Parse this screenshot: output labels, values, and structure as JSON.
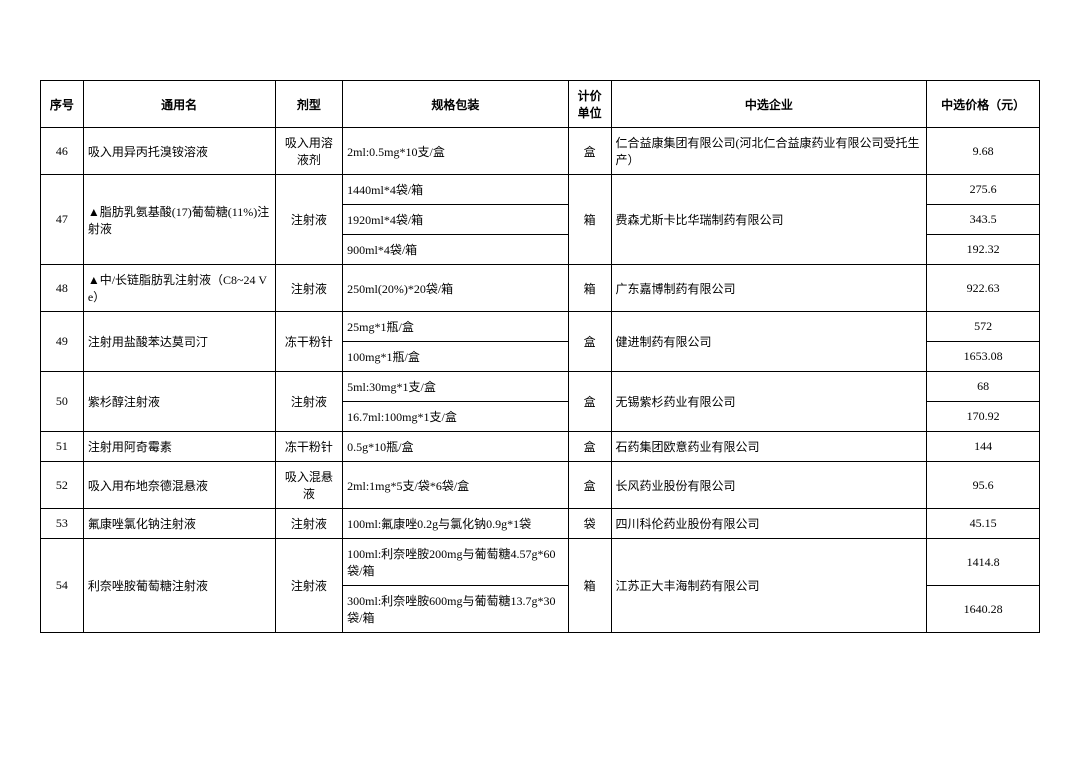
{
  "table": {
    "headers": {
      "seq": "序号",
      "name": "通用名",
      "form": "剂型",
      "spec": "规格包装",
      "unit": "计价单位",
      "company": "中选企业",
      "price": "中选价格（元）"
    },
    "rows": {
      "r46_seq": "46",
      "r46_name": "吸入用异丙托溴铵溶液",
      "r46_form": "吸入用溶液剂",
      "r46_spec": "2ml:0.5mg*10支/盒",
      "r46_unit": "盒",
      "r46_company": "仁合益康集团有限公司(河北仁合益康药业有限公司受托生产）",
      "r46_price": "9.68",
      "r47_seq": "47",
      "r47_name": "▲脂肪乳氨基酸(17)葡萄糖(11%)注射液",
      "r47_form": "注射液",
      "r47_spec1": "1440ml*4袋/箱",
      "r47_spec2": "1920ml*4袋/箱",
      "r47_spec3": "900ml*4袋/箱",
      "r47_unit": "箱",
      "r47_company": "费森尤斯卡比华瑞制药有限公司",
      "r47_price1": "275.6",
      "r47_price2": "343.5",
      "r47_price3": "192.32",
      "r48_seq": "48",
      "r48_name": "▲中/长链脂肪乳注射液（C8~24 Ve）",
      "r48_form": "注射液",
      "r48_spec": "250ml(20%)*20袋/箱",
      "r48_unit": "箱",
      "r48_company": "广东嘉博制药有限公司",
      "r48_price": "922.63",
      "r49_seq": "49",
      "r49_name": "注射用盐酸苯达莫司汀",
      "r49_form": "冻干粉针",
      "r49_spec1": "25mg*1瓶/盒",
      "r49_spec2": "100mg*1瓶/盒",
      "r49_unit": "盒",
      "r49_company": "健进制药有限公司",
      "r49_price1": "572",
      "r49_price2": "1653.08",
      "r50_seq": "50",
      "r50_name": "紫杉醇注射液",
      "r50_form": "注射液",
      "r50_spec1": "5ml:30mg*1支/盒",
      "r50_spec2": "16.7ml:100mg*1支/盒",
      "r50_unit": "盒",
      "r50_company": "无锡紫杉药业有限公司",
      "r50_price1": "68",
      "r50_price2": "170.92",
      "r51_seq": "51",
      "r51_name": "注射用阿奇霉素",
      "r51_form": "冻干粉针",
      "r51_spec": "0.5g*10瓶/盒",
      "r51_unit": "盒",
      "r51_company": "石药集团欧意药业有限公司",
      "r51_price": "144",
      "r52_seq": "52",
      "r52_name": "吸入用布地奈德混悬液",
      "r52_form": "吸入混悬液",
      "r52_spec": "2ml:1mg*5支/袋*6袋/盒",
      "r52_unit": "盒",
      "r52_company": "长风药业股份有限公司",
      "r52_price": "95.6",
      "r53_seq": "53",
      "r53_name": "氟康唑氯化钠注射液",
      "r53_form": "注射液",
      "r53_spec": "100ml:氟康唑0.2g与氯化钠0.9g*1袋",
      "r53_unit": "袋",
      "r53_company": "四川科伦药业股份有限公司",
      "r53_price": "45.15",
      "r54_seq": "54",
      "r54_name": "利奈唑胺葡萄糖注射液",
      "r54_form": "注射液",
      "r54_spec1": "100ml:利奈唑胺200mg与葡萄糖4.57g*60袋/箱",
      "r54_spec2": "300ml:利奈唑胺600mg与葡萄糖13.7g*30袋/箱",
      "r54_unit": "箱",
      "r54_company": "江苏正大丰海制药有限公司",
      "r54_price1": "1414.8",
      "r54_price2": "1640.28"
    },
    "col_widths": {
      "seq": 38,
      "name": 170,
      "form": 60,
      "spec": 200,
      "unit": 38,
      "company": 280,
      "price": 100
    },
    "font_size": 12,
    "border_color": "#000000",
    "background_color": "#ffffff"
  }
}
